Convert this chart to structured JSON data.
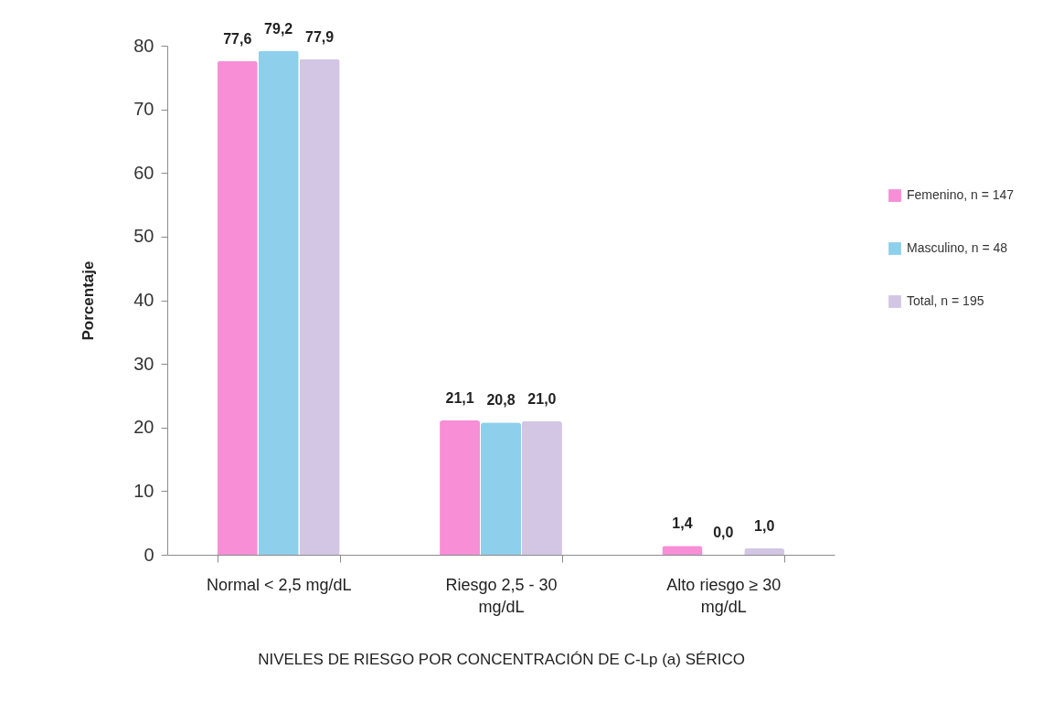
{
  "chart_data": {
    "type": "bar",
    "xlabel": "NIVELES DE RIESGO POR CONCENTRACIÓN DE C-Lp (a) SÉRICO",
    "ylabel": "Porcentaje",
    "categories": [
      "Normal < 2,5 mg/dL",
      "Riesgo 2,5 - 30 mg/dL",
      "Alto riesgo ≥ 30 mg/dL"
    ],
    "series": [
      {
        "name": "Femenino, n = 147",
        "color": "#f78ed6",
        "values": [
          77.6,
          21.1,
          1.4
        ],
        "value_labels": [
          "77,6",
          "21,1",
          "1,4"
        ]
      },
      {
        "name": "Masculino, n = 48",
        "color": "#8ecfeb",
        "values": [
          79.2,
          20.8,
          0.0
        ],
        "value_labels": [
          "79,2",
          "20,8",
          "0,0"
        ]
      },
      {
        "name": "Total, n = 195",
        "color": "#d3c6e4",
        "values": [
          77.9,
          21.0,
          1.0
        ],
        "value_labels": [
          "77,9",
          "21,0",
          "1,0"
        ]
      }
    ],
    "ylim": [
      0,
      80
    ],
    "yticks": [
      0,
      10,
      20,
      30,
      40,
      50,
      60,
      70,
      80
    ],
    "legend": "right"
  }
}
